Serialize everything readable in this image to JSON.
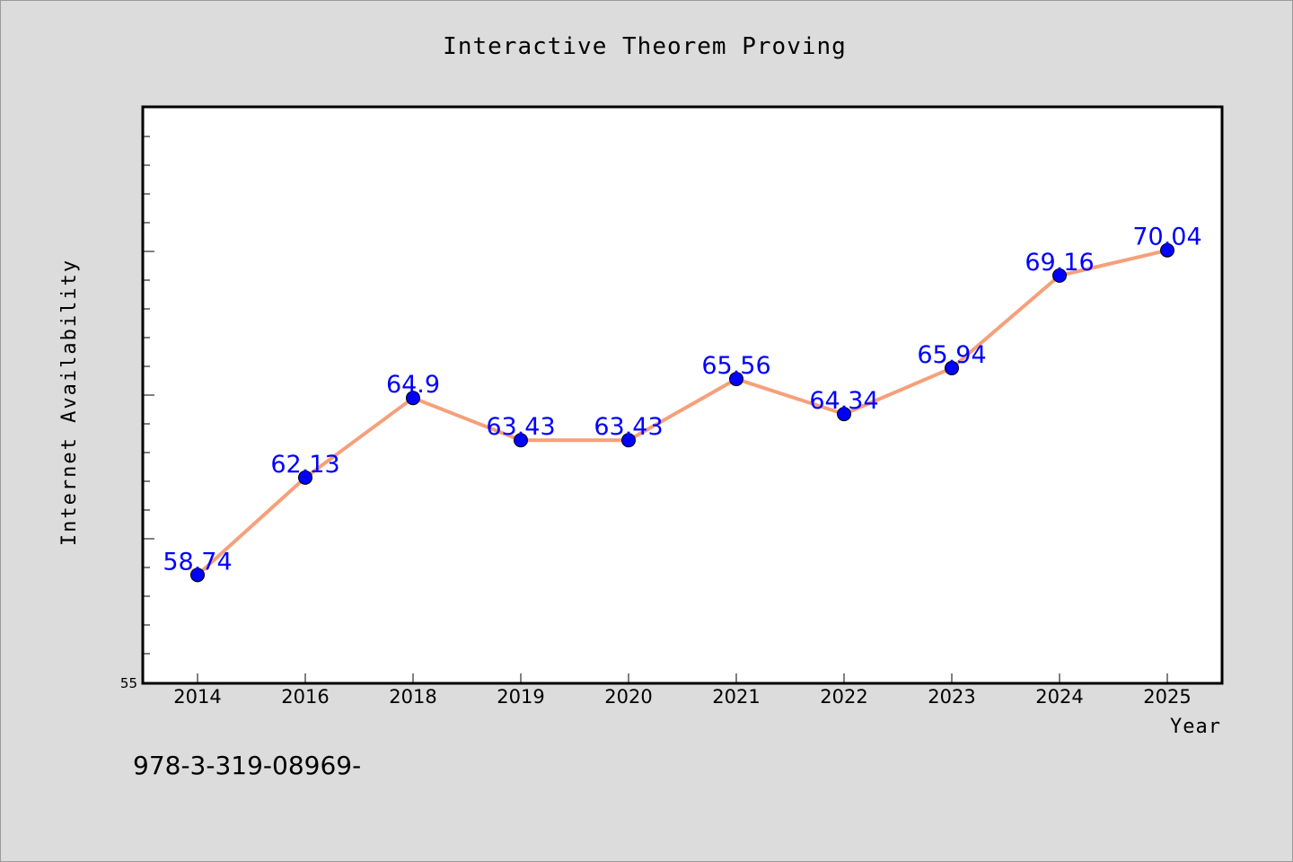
{
  "chart_data": {
    "type": "line",
    "title": "Interactive Theorem Proving",
    "xlabel": "Year",
    "ylabel": "Internet Availability",
    "categories": [
      "2014",
      "2016",
      "2018",
      "2019",
      "2020",
      "2021",
      "2022",
      "2023",
      "2024",
      "2025"
    ],
    "series": [
      {
        "values": [
          58.74,
          62.13,
          64.9,
          63.43,
          63.43,
          65.56,
          64.34,
          65.94,
          69.16,
          70.04
        ]
      }
    ],
    "data_labels": [
      "58.74",
      "62.13",
      "64.9",
      "63.43",
      "63.43",
      "65.56",
      "64.34",
      "65.94",
      "69.16",
      "70.04"
    ],
    "ylim": [
      55,
      75
    ],
    "y_tick_label": "55",
    "grid": false,
    "legend": "none",
    "line_color": "#f5a07a",
    "marker_color": "#0000ff",
    "label_color": "#0000ff"
  },
  "footer": {
    "isbn_text": "978-3-319-08969-"
  }
}
